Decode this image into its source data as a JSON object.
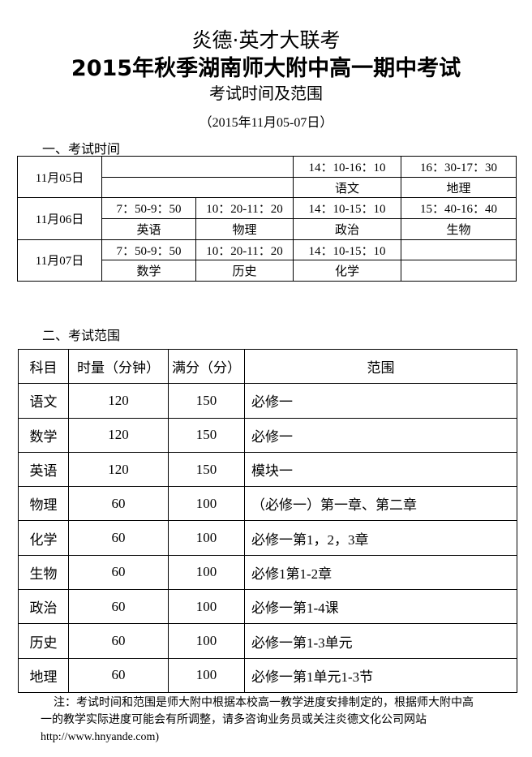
{
  "header": {
    "title1": "炎德·英才大联考",
    "title2": "2015年秋季湖南师大附中高一期中考试",
    "title3": "考试时间及范围",
    "date_range": "（2015年11月05-07日）"
  },
  "section1": "一、考试时间",
  "schedule": [
    {
      "date": "11月05日",
      "slots": [
        {
          "time": "14：10-16：10",
          "subject": "语文"
        },
        {
          "time": "16：30-17：30",
          "subject": "地理"
        }
      ]
    },
    {
      "date": "11月06日",
      "slots": [
        {
          "time": "7：50-9：50",
          "subject": "英语"
        },
        {
          "time": "10：20-11：20",
          "subject": "物理"
        },
        {
          "time": "14：10-15：10",
          "subject": "政治"
        },
        {
          "time": "15：40-16：40",
          "subject": "生物"
        }
      ]
    },
    {
      "date": "11月07日",
      "slots": [
        {
          "time": "7：50-9：50",
          "subject": "数学"
        },
        {
          "time": "10：20-11：20",
          "subject": "历史"
        },
        {
          "time": "14：10-15：10",
          "subject": "化学"
        }
      ]
    }
  ],
  "section2": "二、考试范围",
  "scope": {
    "headers": [
      "科目",
      "时量（分钟）",
      "满分（分）",
      "范围"
    ],
    "rows": [
      [
        "语文",
        "120",
        "150",
        "必修一"
      ],
      [
        "数学",
        "120",
        "150",
        "必修一"
      ],
      [
        "英语",
        "120",
        "150",
        "模块一"
      ],
      [
        "物理",
        "60",
        "100",
        "（必修一）第一章、第二章"
      ],
      [
        "化学",
        "60",
        "100",
        "必修一第1，2，3章"
      ],
      [
        "生物",
        "60",
        "100",
        "必修1第1-2章"
      ],
      [
        "政治",
        "60",
        "100",
        "必修一第1-4课"
      ],
      [
        "历史",
        "60",
        "100",
        "必修一第1-3单元"
      ],
      [
        "地理",
        "60",
        "100",
        "必修一第1单元1-3节"
      ]
    ]
  },
  "note": {
    "line1": "注：考试时间和范围是师大附中根据本校高一教学进度安排制定的，根据师大附中高",
    "line2": "一的教学实际进度可能会有所调整，请多咨询业务员或关注炎德文化公司网站",
    "line3": "http://www.hnyande.com)"
  }
}
